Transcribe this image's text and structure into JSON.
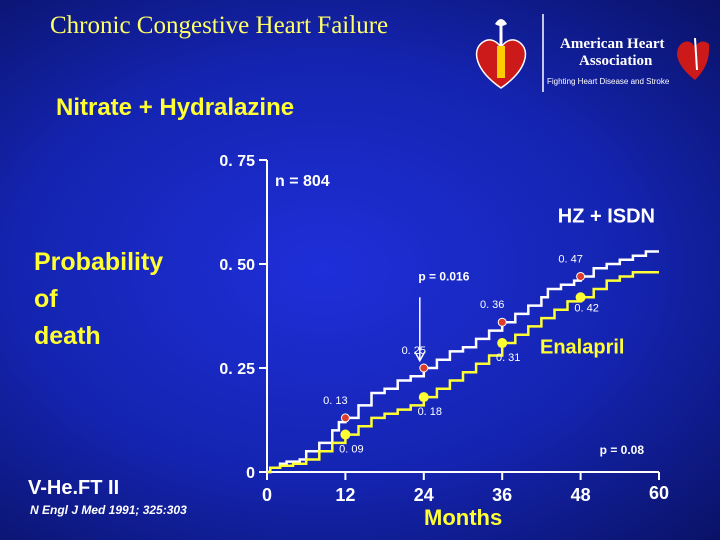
{
  "slide": {
    "title": "Chronic Congestive Heart Failure",
    "subtitle": "Nitrate + Hydralazine",
    "ylabel_lines": [
      "Probability",
      "of",
      "death"
    ],
    "study": "V-He.FT II",
    "citation": "N Engl J Med 1991; 325:303",
    "logo": {
      "line1": "American Heart",
      "line2": "Association",
      "tagline": "Fighting Heart Disease and Stroke",
      "icon": "heart-torch-icon"
    }
  },
  "colors": {
    "background": "#1a2bc8",
    "title": "#ffff66",
    "isdn_line": "#ffffff",
    "isdn_marker": "#e03a2a",
    "enalapril_line": "#ffff33",
    "enalapril_marker": "#ffff33",
    "axis": "#ffffff"
  },
  "chart_data": {
    "type": "line",
    "sample_size": "n = 804",
    "xlabel": "Months",
    "ylabel": "Probability of death",
    "x_ticks": [
      0,
      12,
      24,
      36,
      48,
      60
    ],
    "y_ticks": [
      0,
      0.25,
      0.5,
      0.75
    ],
    "y_tick_labels": [
      "0",
      "0. 25",
      "0. 50",
      "0. 75"
    ],
    "xlim": [
      0,
      60
    ],
    "ylim": [
      0,
      0.75
    ],
    "grid": false,
    "series": [
      {
        "name": "HZ + ISDN",
        "marked": [
          {
            "x": 12,
            "y": 0.13,
            "label": "0. 13"
          },
          {
            "x": 24,
            "y": 0.25,
            "label": "0. 25"
          },
          {
            "x": 36,
            "y": 0.36,
            "label": "0. 36"
          },
          {
            "x": 48,
            "y": 0.47,
            "label": "0. 47"
          }
        ],
        "curve": [
          [
            0,
            0
          ],
          [
            0.5,
            0.01
          ],
          [
            2,
            0.02
          ],
          [
            3,
            0.025
          ],
          [
            5,
            0.03
          ],
          [
            6,
            0.05
          ],
          [
            8,
            0.07
          ],
          [
            10,
            0.1
          ],
          [
            11,
            0.12
          ],
          [
            12,
            0.13
          ],
          [
            14,
            0.16
          ],
          [
            16,
            0.19
          ],
          [
            18,
            0.2
          ],
          [
            20,
            0.22
          ],
          [
            22,
            0.23
          ],
          [
            24,
            0.25
          ],
          [
            26,
            0.27
          ],
          [
            28,
            0.29
          ],
          [
            30,
            0.3
          ],
          [
            32,
            0.32
          ],
          [
            34,
            0.34
          ],
          [
            36,
            0.36
          ],
          [
            38,
            0.38
          ],
          [
            40,
            0.4
          ],
          [
            42,
            0.42
          ],
          [
            43,
            0.44
          ],
          [
            45,
            0.45
          ],
          [
            47,
            0.46
          ],
          [
            48,
            0.47
          ],
          [
            50,
            0.49
          ],
          [
            52,
            0.5
          ],
          [
            54,
            0.51
          ],
          [
            56,
            0.52
          ],
          [
            58,
            0.53
          ],
          [
            60,
            0.53
          ]
        ]
      },
      {
        "name": "Enalapril",
        "marked": [
          {
            "x": 12,
            "y": 0.09,
            "label": "0. 09"
          },
          {
            "x": 24,
            "y": 0.18,
            "label": "0. 18"
          },
          {
            "x": 36,
            "y": 0.31,
            "label": "0. 31"
          },
          {
            "x": 48,
            "y": 0.42,
            "label": "0. 42"
          }
        ],
        "curve": [
          [
            0,
            0
          ],
          [
            0.5,
            0.01
          ],
          [
            2,
            0.015
          ],
          [
            4,
            0.02
          ],
          [
            6,
            0.03
          ],
          [
            8,
            0.05
          ],
          [
            10,
            0.07
          ],
          [
            12,
            0.09
          ],
          [
            14,
            0.11
          ],
          [
            16,
            0.13
          ],
          [
            18,
            0.14
          ],
          [
            20,
            0.15
          ],
          [
            22,
            0.16
          ],
          [
            24,
            0.18
          ],
          [
            26,
            0.2
          ],
          [
            28,
            0.22
          ],
          [
            30,
            0.24
          ],
          [
            32,
            0.26
          ],
          [
            34,
            0.28
          ],
          [
            36,
            0.31
          ],
          [
            38,
            0.33
          ],
          [
            40,
            0.35
          ],
          [
            42,
            0.37
          ],
          [
            44,
            0.39
          ],
          [
            46,
            0.41
          ],
          [
            48,
            0.42
          ],
          [
            50,
            0.44
          ],
          [
            52,
            0.46
          ],
          [
            54,
            0.47
          ],
          [
            56,
            0.48
          ],
          [
            58,
            0.48
          ],
          [
            60,
            0.48
          ]
        ]
      }
    ],
    "annotations": [
      {
        "text": "p  = 0.016",
        "x": 25,
        "y": 0.46
      },
      {
        "text": "p  = 0.08",
        "x": 50,
        "y": 0.01
      }
    ],
    "arrow_at_x": 24
  }
}
